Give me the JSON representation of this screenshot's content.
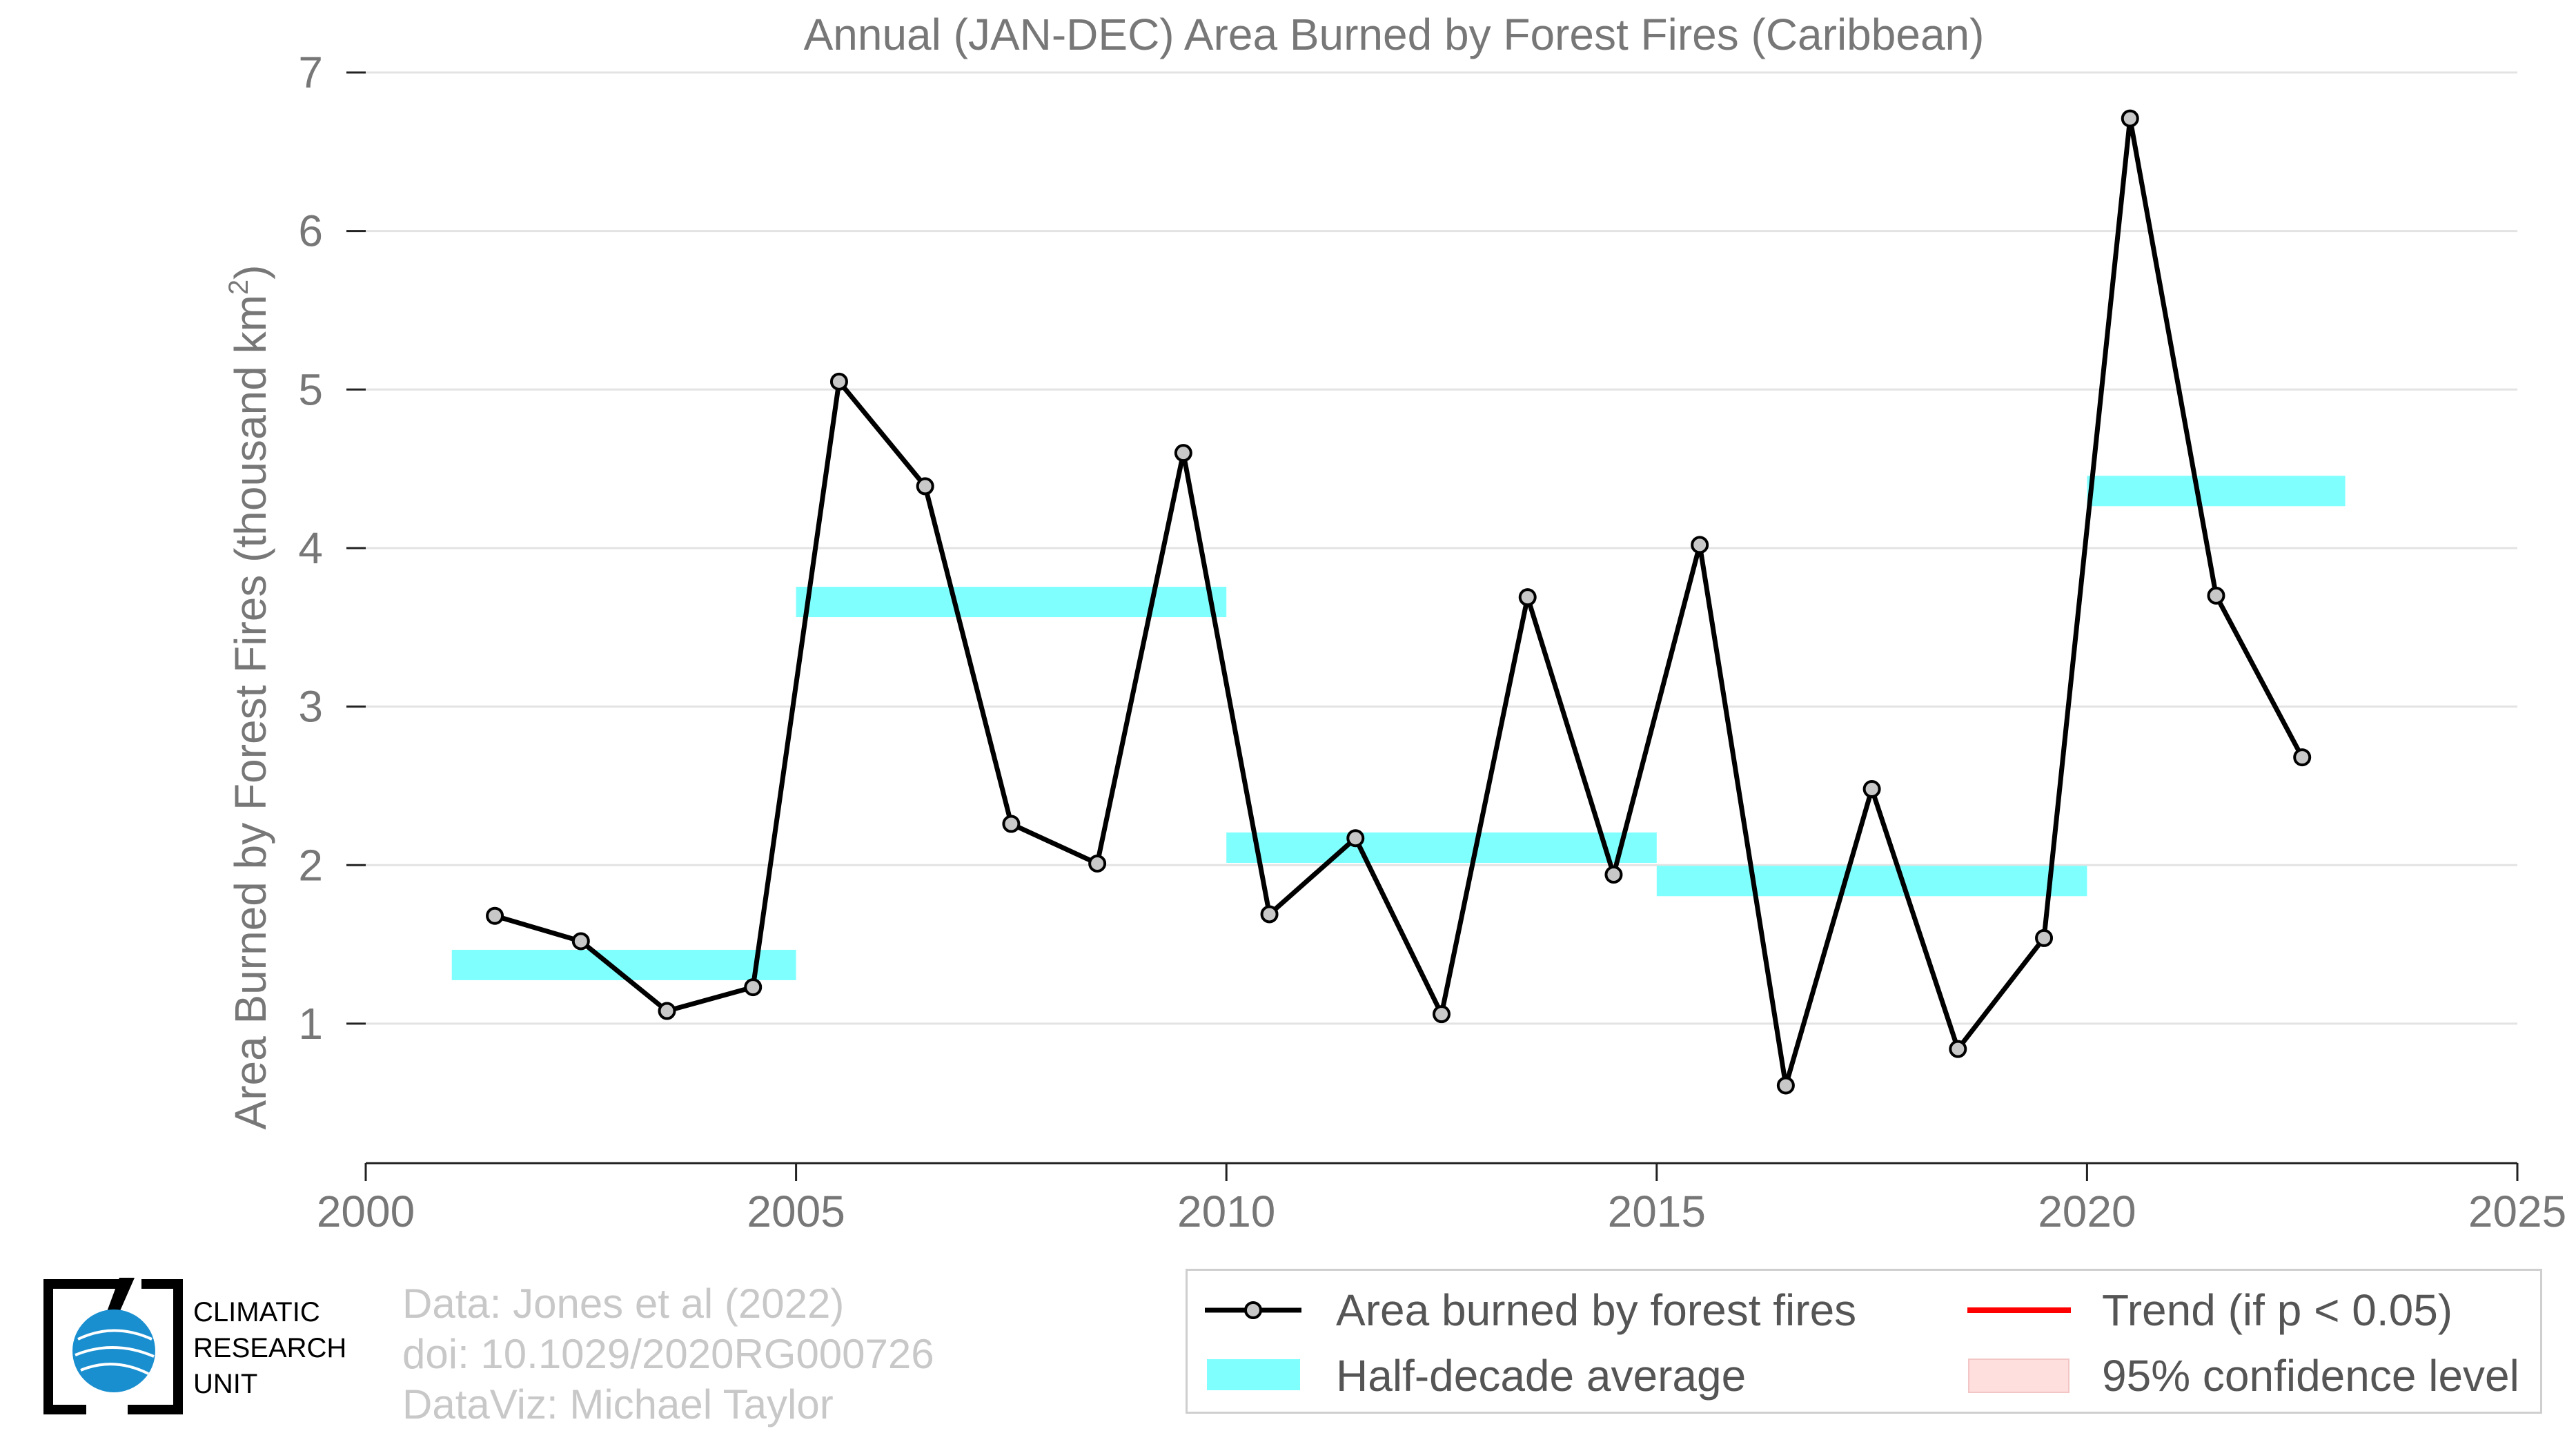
{
  "chart_data": {
    "type": "line",
    "title": "Annual (JAN-DEC) Area Burned by Forest Fires (Caribbean)",
    "xlabel": "",
    "ylabel": "Area Burned by Forest Fires (thousand km",
    "ylabel_sup": "2",
    "ylabel_end": ")",
    "xlim": [
      2000,
      2025
    ],
    "ylim": [
      0.12,
      7
    ],
    "x_ticks": [
      "2000",
      "2005",
      "2010",
      "2015",
      "2020",
      "2025"
    ],
    "y_ticks": [
      "1",
      "2",
      "3",
      "4",
      "5",
      "6",
      "7"
    ],
    "grid": "horizontal",
    "series": [
      {
        "name": "Area burned by forest fires",
        "color": "#000000",
        "marker_color": "#c8c8c8",
        "x": [
          2001.5,
          2002.5,
          2003.5,
          2004.5,
          2005.5,
          2006.5,
          2007.5,
          2008.5,
          2009.5,
          2010.5,
          2011.5,
          2012.5,
          2013.5,
          2014.5,
          2015.5,
          2016.5,
          2017.5,
          2018.5,
          2019.5,
          2020.5,
          2021.5,
          2022.5
        ],
        "y": [
          1.68,
          1.52,
          1.08,
          1.23,
          5.05,
          4.39,
          2.26,
          2.01,
          4.6,
          1.69,
          2.17,
          1.06,
          3.69,
          1.94,
          4.02,
          0.61,
          2.48,
          0.84,
          1.54,
          6.71,
          3.7,
          2.68
        ]
      }
    ],
    "half_decade_average": {
      "name": "Half-decade average",
      "color": "#80ffff",
      "segments": [
        {
          "x0": 2001,
          "x1": 2005,
          "y": 1.37
        },
        {
          "x0": 2005,
          "x1": 2010,
          "y": 3.66
        },
        {
          "x0": 2010,
          "x1": 2015,
          "y": 2.11
        },
        {
          "x0": 2015,
          "x1": 2020,
          "y": 1.9
        },
        {
          "x0": 2020,
          "x1": 2023,
          "y": 4.36
        }
      ]
    },
    "legend": {
      "placement": "bottom-right",
      "entries": [
        {
          "label": "Area burned by forest fires",
          "kind": "line-marker",
          "color": "#000000"
        },
        {
          "label": "Trend (if p < 0.05)",
          "kind": "line",
          "color": "#ff0000"
        },
        {
          "label": "Half-decade average",
          "kind": "band",
          "color": "#80ffff"
        },
        {
          "label": "95% confidence level",
          "kind": "band",
          "color": "#ffdede"
        }
      ]
    }
  },
  "credits": {
    "line1": "Data: Jones et al (2022)",
    "line2": "doi: 10.1029/2020RG000726",
    "line3": "DataViz: Michael Taylor"
  },
  "logo": {
    "line1": "CLIMATIC",
    "line2": "RESEARCH",
    "line3": "UNIT",
    "color": "#1a8fd0"
  }
}
